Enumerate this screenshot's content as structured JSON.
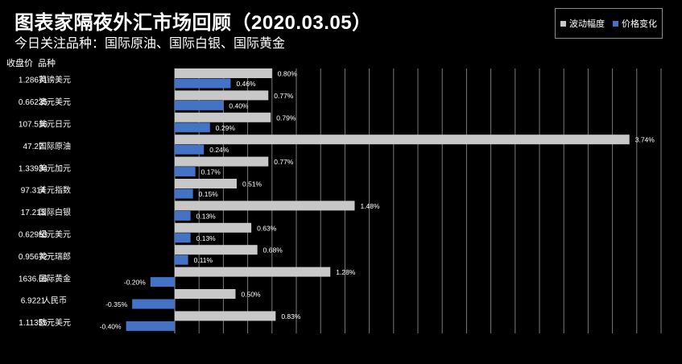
{
  "title": "图表家隔夜外汇市场回顾（2020.03.05）",
  "subtitle": "今日关注品种：国际原油、国际白银、国际黄金",
  "column_headers": {
    "price": "收盘价",
    "name": "品种"
  },
  "colors": {
    "background": "#000000",
    "volatility": "#c8c8c8",
    "change": "#4472c4",
    "grid": "#7a7a7a",
    "text": "#ffffff"
  },
  "chart_data": {
    "type": "bar",
    "orientation": "horizontal",
    "categories": [
      "英镑美元",
      "澳元美元",
      "美元日元",
      "国际原油",
      "美元加元",
      "美元指数",
      "国际白银",
      "纽元美元",
      "美元瑞郎",
      "国际黄金",
      "人民币",
      "欧元美元"
    ],
    "closing_prices": [
      "1.28671",
      "0.66235",
      "107.516",
      "47.27",
      "1.33934",
      "97.314",
      "17.213",
      "0.62953",
      "0.95672",
      "1636.65",
      "6.9221",
      "1.11355"
    ],
    "series": [
      {
        "name": "波动幅度",
        "values": [
          0.8,
          0.77,
          0.79,
          3.74,
          0.77,
          0.51,
          1.48,
          0.63,
          0.68,
          1.28,
          0.5,
          0.83
        ],
        "labels": [
          "0.80%",
          "0.77%",
          "0.79%",
          "3.74%",
          "0.77%",
          "0.51%",
          "1.48%",
          "0.63%",
          "0.68%",
          "1.28%",
          "0.50%",
          "0.83%"
        ]
      },
      {
        "name": "价格变化",
        "values": [
          0.46,
          0.4,
          0.29,
          0.24,
          0.17,
          0.15,
          0.13,
          0.13,
          0.11,
          -0.2,
          -0.35,
          -0.4
        ],
        "labels": [
          "0.46%",
          "0.40%",
          "0.29%",
          "0.24%",
          "0.17%",
          "0.15%",
          "0.13%",
          "0.13%",
          "0.11%",
          "-0.20%",
          "-0.35%",
          "-0.40%"
        ]
      }
    ],
    "xlim": [
      -0.4,
      4.0
    ],
    "grid": true,
    "legend_position": "top-right"
  }
}
